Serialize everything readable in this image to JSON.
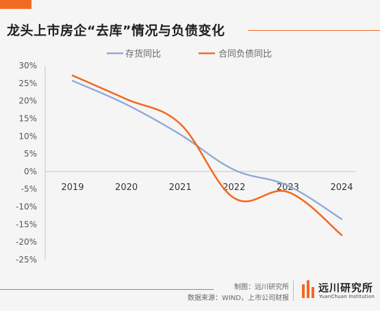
{
  "header": {
    "title": "龙头上市房企“去库”情况与负债变化"
  },
  "chart_data": {
    "type": "line",
    "categories": [
      "2019",
      "2020",
      "2021",
      "2022",
      "2023",
      "2024"
    ],
    "series": [
      {
        "name": "存货同比",
        "color": "#8fa9d6",
        "values": [
          25.7,
          19.0,
          10.5,
          0.5,
          -4.0,
          -13.5
        ]
      },
      {
        "name": "合同负债同比",
        "color": "#f26a21",
        "values": [
          27.2,
          20.5,
          13.5,
          -7.5,
          -5.8,
          -18.0
        ]
      }
    ],
    "yticks": [
      30,
      25,
      20,
      15,
      10,
      5,
      0,
      -5,
      -10,
      -15,
      -20,
      -25
    ],
    "ytick_labels": [
      "30%",
      "25%",
      "20%",
      "15%",
      "10%",
      "5%",
      "0%",
      "-5%",
      "-10%",
      "-15%",
      "-20%",
      "-25%"
    ],
    "ylim": [
      -25,
      30
    ],
    "legend_position": "top-center",
    "grid": false,
    "smooth": true
  },
  "footer": {
    "credit_line1": "制图：远川研究所",
    "credit_line2": "数据来源：WIND，上市公司财报",
    "logo_name": "远川研究所",
    "logo_subtitle": "YuanChuan Institution"
  }
}
